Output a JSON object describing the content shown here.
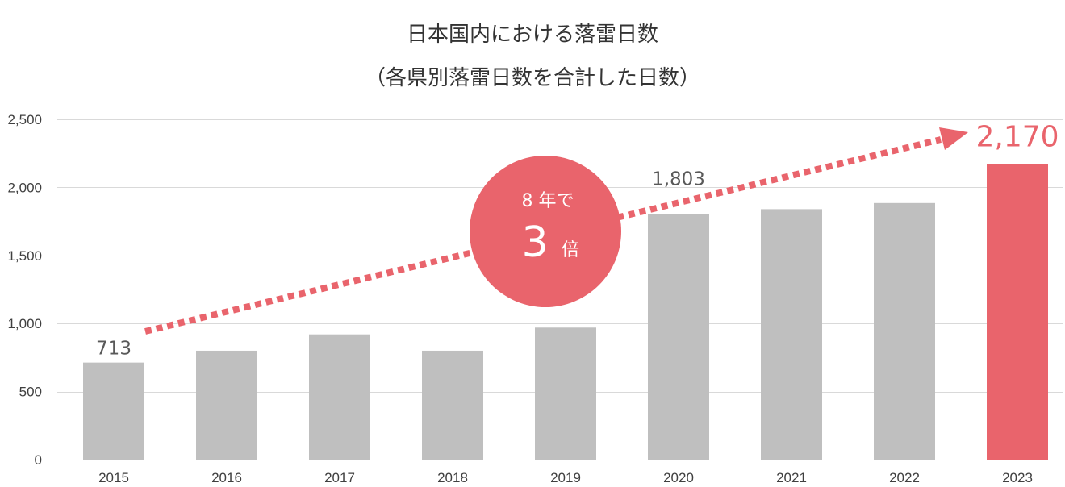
{
  "colors": {
    "bar": "#BFBFBF",
    "highlight": "#E9646C",
    "text": "#333333",
    "axis_text": "#404040",
    "value_label": "#595959",
    "gridline": "#D9D9D9",
    "badge_text": "#FFFFFF"
  },
  "chart_data": {
    "type": "bar",
    "title": "日本国内における落雷日数",
    "subtitle": "（各県別落雷日数を合計した日数）",
    "categories": [
      "2015",
      "2016",
      "2017",
      "2018",
      "2019",
      "2020",
      "2021",
      "2022",
      "2023"
    ],
    "values": [
      713,
      800,
      920,
      800,
      970,
      1803,
      1840,
      1885,
      2170
    ],
    "ylim": [
      0,
      2500
    ],
    "yticks": [
      0,
      500,
      1000,
      1500,
      2000,
      2500
    ],
    "ytick_labels": [
      "0",
      "500",
      "1,000",
      "1,500",
      "2,000",
      "2,500"
    ],
    "grid": true,
    "highlight_category": "2023",
    "data_labels": [
      {
        "category": "2015",
        "text": "713"
      },
      {
        "category": "2020",
        "text": "1,803"
      },
      {
        "category": "2023",
        "text": "2,170"
      }
    ],
    "annotations": {
      "badge": {
        "line1": "8 年で",
        "number": "3",
        "unit": "倍"
      }
    }
  }
}
